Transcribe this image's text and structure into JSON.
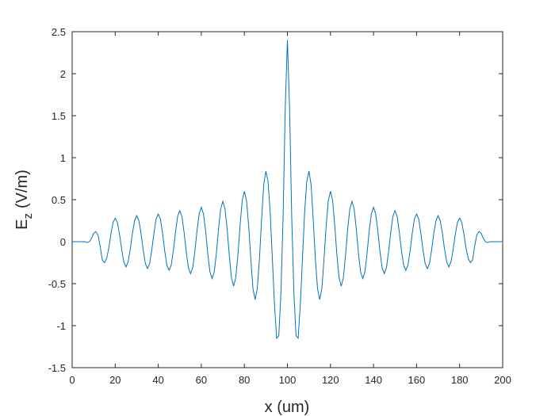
{
  "chart_data": {
    "type": "line",
    "xlabel": "x (um)",
    "ylabel": "E",
    "ylabel_subscript": "z",
    "ylabel_rest": "(V/m)",
    "color": "#0072bd",
    "xlim": [
      0,
      200
    ],
    "xticks": [
      0,
      20,
      40,
      60,
      80,
      100,
      120,
      140,
      160,
      180,
      200
    ],
    "ylim": [
      -1.5,
      2.5
    ],
    "yticks": [
      -1.5,
      -1,
      -0.5,
      0,
      0.5,
      1,
      1.5,
      2,
      2.5
    ],
    "x": [
      0,
      1,
      2,
      3,
      4,
      5,
      6,
      7,
      8,
      9,
      10,
      11,
      12,
      13,
      14,
      15,
      16,
      17,
      18,
      19,
      20,
      21,
      22,
      23,
      24,
      25,
      26,
      27,
      28,
      29,
      30,
      31,
      32,
      33,
      34,
      35,
      36,
      37,
      38,
      39,
      40,
      41,
      42,
      43,
      44,
      45,
      46,
      47,
      48,
      49,
      50,
      51,
      52,
      53,
      54,
      55,
      56,
      57,
      58,
      59,
      60,
      61,
      62,
      63,
      64,
      65,
      66,
      67,
      68,
      69,
      70,
      71,
      72,
      73,
      74,
      75,
      76,
      77,
      78,
      79,
      80,
      81,
      82,
      83,
      84,
      85,
      86,
      87,
      88,
      89,
      90,
      91,
      92,
      93,
      94,
      95,
      96,
      97,
      98,
      99,
      100,
      101,
      102,
      103,
      104,
      105,
      106,
      107,
      108,
      109,
      110,
      111,
      112,
      113,
      114,
      115,
      116,
      117,
      118,
      119,
      120,
      121,
      122,
      123,
      124,
      125,
      126,
      127,
      128,
      129,
      130,
      131,
      132,
      133,
      134,
      135,
      136,
      137,
      138,
      139,
      140,
      141,
      142,
      143,
      144,
      145,
      146,
      147,
      148,
      149,
      150,
      151,
      152,
      153,
      154,
      155,
      156,
      157,
      158,
      159,
      160,
      161,
      162,
      163,
      164,
      165,
      166,
      167,
      168,
      169,
      170,
      171,
      172,
      173,
      174,
      175,
      176,
      177,
      178,
      179,
      180,
      181,
      182,
      183,
      184,
      185,
      186,
      187,
      188,
      189,
      190,
      191,
      192,
      193,
      194,
      195,
      196,
      197,
      198,
      199,
      200
    ],
    "values": [
      0,
      0,
      0,
      0,
      0,
      0,
      0,
      -0.01,
      0,
      0.04,
      0.1,
      0.12,
      0.08,
      -0.05,
      -0.22,
      -0.25,
      -0.2,
      -0.08,
      0.09,
      0.23,
      0.28,
      0.23,
      0.09,
      -0.09,
      -0.24,
      -0.3,
      -0.24,
      -0.09,
      0.1,
      0.25,
      0.31,
      0.25,
      0.1,
      -0.1,
      -0.26,
      -0.32,
      -0.26,
      -0.1,
      0.1,
      0.27,
      0.33,
      0.27,
      0.1,
      -0.11,
      -0.28,
      -0.34,
      -0.28,
      -0.11,
      0.11,
      0.3,
      0.37,
      0.3,
      0.11,
      -0.12,
      -0.31,
      -0.38,
      -0.31,
      -0.12,
      0.13,
      0.33,
      0.41,
      0.33,
      0.13,
      -0.14,
      -0.36,
      -0.44,
      -0.36,
      -0.14,
      0.15,
      0.39,
      0.48,
      0.39,
      0.15,
      -0.16,
      -0.43,
      -0.53,
      -0.43,
      -0.16,
      0.19,
      0.49,
      0.6,
      0.49,
      0.19,
      -0.21,
      -0.56,
      -0.69,
      -0.56,
      -0.21,
      0.26,
      0.68,
      0.84,
      0.72,
      0.35,
      -0.2,
      -0.75,
      -1.15,
      -1.12,
      -0.6,
      0.3,
      1.6,
      2.4,
      1.6,
      0.3,
      -0.6,
      -1.12,
      -1.15,
      -0.75,
      -0.2,
      0.35,
      0.72,
      0.84,
      0.68,
      0.26,
      -0.21,
      -0.56,
      -0.69,
      -0.56,
      -0.21,
      0.19,
      0.49,
      0.6,
      0.49,
      0.19,
      -0.16,
      -0.43,
      -0.53,
      -0.43,
      -0.16,
      0.15,
      0.39,
      0.48,
      0.39,
      0.15,
      -0.14,
      -0.36,
      -0.44,
      -0.36,
      -0.14,
      0.13,
      0.33,
      0.41,
      0.33,
      0.13,
      -0.12,
      -0.31,
      -0.38,
      -0.31,
      -0.12,
      0.11,
      0.3,
      0.37,
      0.3,
      0.11,
      -0.11,
      -0.28,
      -0.34,
      -0.28,
      -0.11,
      0.1,
      0.27,
      0.33,
      0.27,
      0.1,
      -0.1,
      -0.26,
      -0.32,
      -0.26,
      -0.1,
      0.1,
      0.25,
      0.31,
      0.25,
      0.1,
      -0.09,
      -0.24,
      -0.3,
      -0.24,
      -0.09,
      0.09,
      0.23,
      0.28,
      0.23,
      0.09,
      -0.08,
      -0.2,
      -0.25,
      -0.22,
      -0.05,
      0.08,
      0.12,
      0.1,
      0.04,
      0,
      -0.01,
      0,
      0,
      0,
      0,
      0,
      0,
      0
    ]
  }
}
